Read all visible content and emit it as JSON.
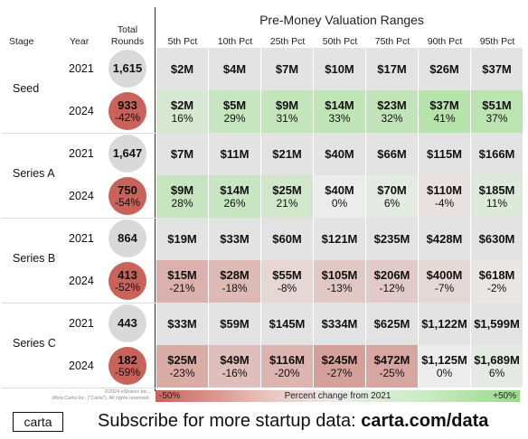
{
  "header": {
    "stage_label": "Stage",
    "year_label": "Year",
    "total_label_1": "Total",
    "total_label_2": "Rounds",
    "ranges_title": "Pre-Money Valuation Ranges"
  },
  "columns": [
    "5th Pct",
    "10th Pct",
    "25th Pct",
    "50th Pct",
    "75th Pct",
    "90th Pct",
    "95th Pct"
  ],
  "colors": {
    "gray": "#e3e3e3",
    "circle_gray": "#d9d9d9",
    "circle_red": "#c9625a",
    "grid_line": "#cfcfcf"
  },
  "chart_data": {
    "type": "table",
    "title": "Pre-Money Valuation Ranges",
    "stages": [
      {
        "name": "Seed",
        "rows": [
          {
            "year": "2021",
            "total": "1,615",
            "total_change": "",
            "values": [
              "$2M",
              "$4M",
              "$7M",
              "$10M",
              "$17M",
              "$26M",
              "$37M"
            ],
            "changes": [],
            "change_nums": []
          },
          {
            "year": "2024",
            "total": "933",
            "total_change": "-42%",
            "values": [
              "$2M",
              "$5M",
              "$9M",
              "$14M",
              "$23M",
              "$37M",
              "$51M"
            ],
            "changes": [
              "16%",
              "29%",
              "31%",
              "33%",
              "32%",
              "41%",
              "37%"
            ],
            "change_nums": [
              16,
              29,
              31,
              33,
              32,
              41,
              37
            ]
          }
        ]
      },
      {
        "name": "Series A",
        "rows": [
          {
            "year": "2021",
            "total": "1,647",
            "total_change": "",
            "values": [
              "$7M",
              "$11M",
              "$21M",
              "$40M",
              "$66M",
              "$115M",
              "$166M"
            ],
            "changes": [],
            "change_nums": []
          },
          {
            "year": "2024",
            "total": "750",
            "total_change": "-54%",
            "values": [
              "$9M",
              "$14M",
              "$25M",
              "$40M",
              "$70M",
              "$110M",
              "$185M"
            ],
            "changes": [
              "28%",
              "26%",
              "21%",
              "0%",
              "6%",
              "-4%",
              "11%"
            ],
            "change_nums": [
              28,
              26,
              21,
              0,
              6,
              -4,
              11
            ]
          }
        ]
      },
      {
        "name": "Series B",
        "rows": [
          {
            "year": "2021",
            "total": "864",
            "total_change": "",
            "values": [
              "$19M",
              "$33M",
              "$60M",
              "$121M",
              "$235M",
              "$428M",
              "$630M"
            ],
            "changes": [],
            "change_nums": []
          },
          {
            "year": "2024",
            "total": "413",
            "total_change": "-52%",
            "values": [
              "$15M",
              "$28M",
              "$55M",
              "$105M",
              "$206M",
              "$400M",
              "$618M"
            ],
            "changes": [
              "-21%",
              "-18%",
              "-8%",
              "-13%",
              "-12%",
              "-7%",
              "-2%"
            ],
            "change_nums": [
              -21,
              -18,
              -8,
              -13,
              -12,
              -7,
              -2
            ]
          }
        ]
      },
      {
        "name": "Series C",
        "rows": [
          {
            "year": "2021",
            "total": "443",
            "total_change": "",
            "values": [
              "$33M",
              "$59M",
              "$145M",
              "$334M",
              "$625M",
              "$1,122M",
              "$1,599M"
            ],
            "changes": [],
            "change_nums": []
          },
          {
            "year": "2024",
            "total": "182",
            "total_change": "-59%",
            "values": [
              "$25M",
              "$49M",
              "$116M",
              "$245M",
              "$472M",
              "$1,125M",
              "$1,689M"
            ],
            "changes": [
              "-23%",
              "-16%",
              "-20%",
              "-27%",
              "-25%",
              "0%",
              "6%"
            ],
            "change_nums": [
              -23,
              -16,
              -20,
              -27,
              -25,
              0,
              6
            ]
          }
        ]
      }
    ],
    "legend": {
      "min_label": "-50%",
      "center_label": "Percent change from 2021",
      "max_label": "+50%",
      "min": -50,
      "max": 50
    }
  },
  "copyright": {
    "line1": "©2024 eShares Inc.,",
    "line2": "d/b/a Carta Inc. (\"Carta\"). All rights reserved."
  },
  "footer": {
    "logo": "carta",
    "text_prefix": "Subscribe for more startup data: ",
    "text_link": "carta.com/data"
  }
}
